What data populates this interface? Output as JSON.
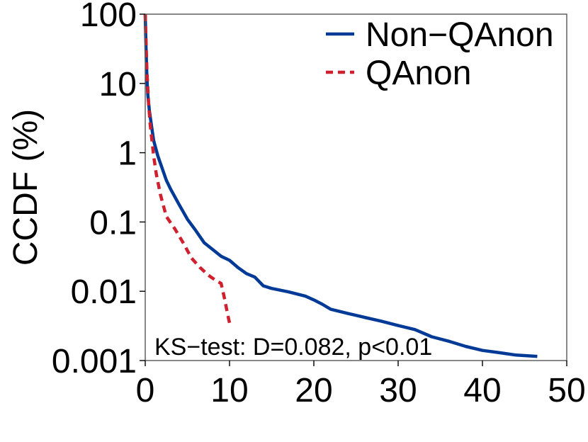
{
  "chart_data": {
    "type": "line",
    "xlabel": "",
    "ylabel": "CCDF (%)",
    "xlim": [
      0,
      50
    ],
    "ylim": [
      0.001,
      100
    ],
    "yscale": "log",
    "x_ticks": [
      0,
      10,
      20,
      30,
      40,
      50
    ],
    "x_tick_labels": [
      "0",
      "10",
      "20",
      "30",
      "40",
      "50"
    ],
    "y_ticks": [
      0.001,
      0.01,
      0.1,
      1,
      10,
      100
    ],
    "y_tick_labels": [
      "0.001",
      "0.01",
      "0.1",
      "1",
      "10",
      "100"
    ],
    "grid": false,
    "legend_position": "top-right",
    "annotation": "KS−test: D=0.082, p<0.01",
    "series": [
      {
        "name": "Non−QAnon",
        "color": "#003a96",
        "style": "solid",
        "x": [
          0,
          0.1,
          0.2,
          0.3,
          0.5,
          0.8,
          1.0,
          1.5,
          2.0,
          2.5,
          3,
          4,
          5,
          6,
          7,
          8,
          9,
          10,
          11,
          12,
          13,
          14,
          15,
          17,
          19,
          20,
          21,
          22,
          24,
          26,
          28,
          30,
          32,
          34,
          36,
          38,
          40,
          42,
          44,
          46.5
        ],
        "y": [
          100,
          30,
          12,
          7,
          4,
          2.2,
          1.5,
          0.9,
          0.6,
          0.4,
          0.3,
          0.18,
          0.11,
          0.075,
          0.05,
          0.04,
          0.032,
          0.028,
          0.022,
          0.018,
          0.016,
          0.012,
          0.011,
          0.0098,
          0.0085,
          0.0075,
          0.0065,
          0.0055,
          0.0048,
          0.0042,
          0.0037,
          0.0032,
          0.0028,
          0.0022,
          0.0019,
          0.0016,
          0.0014,
          0.0013,
          0.0012,
          0.00115
        ]
      },
      {
        "name": "QAnon",
        "color": "#d0202e",
        "style": "dashed",
        "x": [
          0,
          0.2,
          0.4,
          0.6,
          0.8,
          1.0,
          1.3,
          1.8,
          2.5,
          3.5,
          4.5,
          5.5,
          6.5,
          7.5,
          8.5,
          9.0,
          9.3,
          9.6,
          9.8,
          10.0
        ],
        "y": [
          100,
          15,
          5,
          2.5,
          1.5,
          0.9,
          0.5,
          0.25,
          0.12,
          0.08,
          0.05,
          0.03,
          0.022,
          0.017,
          0.014,
          0.013,
          0.009,
          0.006,
          0.0045,
          0.0035
        ]
      }
    ]
  }
}
